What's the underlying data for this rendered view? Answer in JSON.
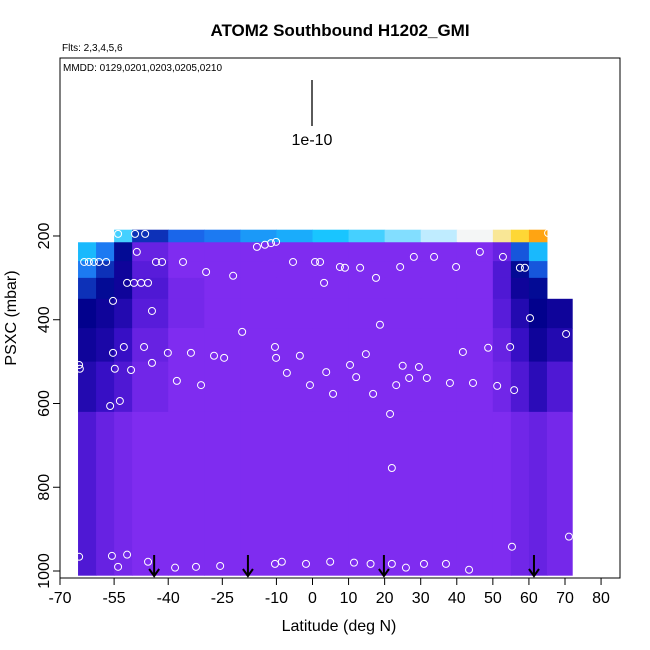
{
  "chart_data": {
    "type": "heatmap",
    "title": "ATOM2 Southbound H1202_GMI",
    "subtitle": "Flts: 2,3,4,5,6",
    "annotation": "MMDD: 0129,0201,0203,0205,0210",
    "scale_label": "1e-10",
    "x_label": "Latitude (deg N)",
    "y_label": "PSXC (mbar)",
    "xlim": [
      -70,
      85.25
    ],
    "xticks": [
      -70,
      -55,
      -40,
      -25,
      -10,
      0,
      10,
      20,
      30,
      40,
      50,
      60,
      70,
      80
    ],
    "ylim": [
      -225,
      1016.7
    ],
    "y_inverted": true,
    "yticks": [
      200,
      400,
      600,
      800,
      1000
    ],
    "colorscale": [
      "#7f2cf0",
      "#3a10c8",
      "#00008b",
      "#1c6cf0",
      "#19c6ff",
      "#f4f8ff",
      "#ffd21a",
      "#ff3a00"
    ],
    "zlim": [
      0,
      1
    ],
    "x_edges": [
      -65,
      -60,
      -55,
      -50,
      -40,
      -30,
      -20,
      -10,
      0,
      10,
      20,
      30,
      40,
      50,
      55,
      60,
      65,
      72
    ],
    "y_edges": [
      185,
      215,
      260,
      300,
      350,
      420,
      500,
      620,
      1010
    ],
    "z": [
      [
        null,
        null,
        0.6,
        0.35,
        0.42,
        0.45,
        0.5,
        0.53,
        0.57,
        0.6,
        0.64,
        0.68,
        0.72,
        0.78,
        0.84,
        0.9,
        null
      ],
      [
        0.55,
        0.45,
        0.3,
        0.05,
        0,
        0,
        0,
        0,
        0,
        0,
        0,
        0,
        0,
        0.05,
        0.4,
        0.55,
        null
      ],
      [
        0.45,
        0.35,
        0.25,
        0.08,
        0,
        0,
        0,
        0,
        0,
        0,
        0,
        0,
        0,
        0.1,
        0.3,
        0.4,
        null
      ],
      [
        0.35,
        0.3,
        0.25,
        0.1,
        0.02,
        0,
        0,
        0,
        0,
        0,
        0,
        0,
        0,
        0.1,
        0.25,
        0.3,
        null
      ],
      [
        0.28,
        0.25,
        0.2,
        0.08,
        0.02,
        0,
        0,
        0,
        0,
        0,
        0,
        0,
        0,
        0.08,
        0.2,
        0.28,
        0.25
      ],
      [
        0.25,
        0.22,
        0.15,
        0.05,
        0,
        0,
        0,
        0,
        0,
        0,
        0,
        0,
        0,
        0.05,
        0.15,
        0.25,
        0.2
      ],
      [
        0.2,
        0.15,
        0.1,
        0.03,
        0,
        0,
        0,
        0,
        0,
        0,
        0,
        0,
        0,
        0.03,
        0.1,
        0.18,
        0.1
      ],
      [
        0.1,
        0.05,
        0.02,
        0,
        0,
        0,
        0,
        0,
        0,
        0,
        0,
        0,
        0,
        0,
        0.03,
        0.05,
        0.02
      ]
    ],
    "points_color": "#ffffff",
    "points_x": [
      -64.7,
      -64.5,
      -63.3,
      -62.0,
      -60.6,
      -59.2,
      -57.2,
      -53.9,
      -49.2,
      -46.4,
      -48.7,
      -51.4,
      -49.5,
      -47.5,
      -45.6,
      -55.3,
      -44.5,
      -43.4,
      -41.7,
      -35.9,
      -29.5,
      -22.0,
      -19.5,
      -55.3,
      -52.3,
      -46.7,
      -40.1,
      -33.7,
      -27.3,
      -24.5,
      -54.8,
      -50.3,
      -44.5,
      -37.6,
      -30.9,
      -56.1,
      -53.4,
      -15.4,
      -13.2,
      -11.5,
      -10.1,
      -10.4,
      -10.1,
      -7.1,
      -5.4,
      -3.5,
      -0.7,
      0.7,
      2.1,
      3.2,
      3.8,
      5.7,
      7.6,
      9.0,
      10.4,
      12.1,
      13.2,
      14.8,
      16.8,
      17.6,
      18.7,
      21.5,
      22.0,
      23.2,
      24.3,
      25.0,
      26.8,
      28.1,
      29.5,
      31.7,
      33.7,
      38.1,
      39.8,
      41.7,
      44.5,
      46.4,
      48.7,
      51.2,
      52.8,
      54.8,
      55.9,
      57.5,
      58.9,
      60.3,
      65.3,
      68.1,
      70.3,
      71.1,
      -64.7,
      -55.6,
      -53.9,
      -51.4,
      -45.6,
      -38.1,
      -32.3,
      -25.6,
      -10.4,
      -8.5,
      -1.8,
      4.9,
      11.5,
      16.1,
      22.0,
      25.9,
      30.9,
      37.0,
      43.4,
      55.3
    ],
    "points_y": [
      508,
      517,
      262,
      262,
      262,
      262,
      262,
      195,
      195,
      195,
      238,
      312,
      312,
      312,
      312,
      355,
      379,
      262,
      262,
      262,
      286,
      295,
      429,
      479,
      465,
      465,
      479,
      479,
      486,
      491,
      517,
      520,
      503,
      546,
      556,
      606,
      594,
      226,
      221,
      217,
      214,
      465,
      491,
      527,
      262,
      486,
      556,
      262,
      262,
      312,
      525,
      577,
      274,
      276,
      508,
      537,
      276,
      482,
      577,
      300,
      412,
      625,
      754,
      556,
      274,
      510,
      539,
      250,
      513,
      539,
      250,
      551,
      274,
      477,
      551,
      238,
      467,
      558,
      250,
      465,
      568,
      276,
      276,
      396,
      193,
      193,
      434,
      918,
      966,
      964,
      990,
      961,
      978,
      992,
      990,
      988,
      983,
      978,
      983,
      978,
      980,
      983,
      983,
      992,
      983,
      983,
      997,
      942
    ],
    "arrows_x": [
      -43.9,
      -17.9,
      19.8,
      61.4
    ]
  }
}
